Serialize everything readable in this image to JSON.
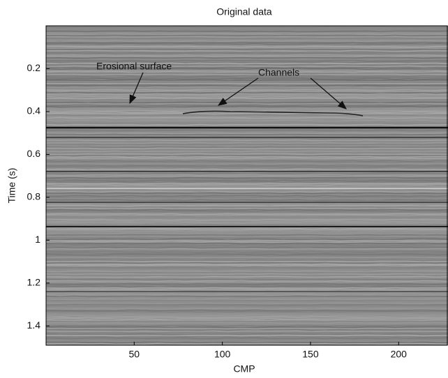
{
  "chart_data": {
    "type": "seismic",
    "title": "Original data",
    "xlabel": "CMP",
    "ylabel": "Time (s)",
    "xlim": [
      0,
      228
    ],
    "xticks": [
      50,
      100,
      150,
      200
    ],
    "ylim": [
      1.49,
      0
    ],
    "yticks": [
      0.2,
      0.4,
      0.6,
      0.8,
      1,
      1.2,
      1.4
    ],
    "colormap": "gray",
    "annotations": [
      "Erosional surface",
      "Channels"
    ]
  }
}
